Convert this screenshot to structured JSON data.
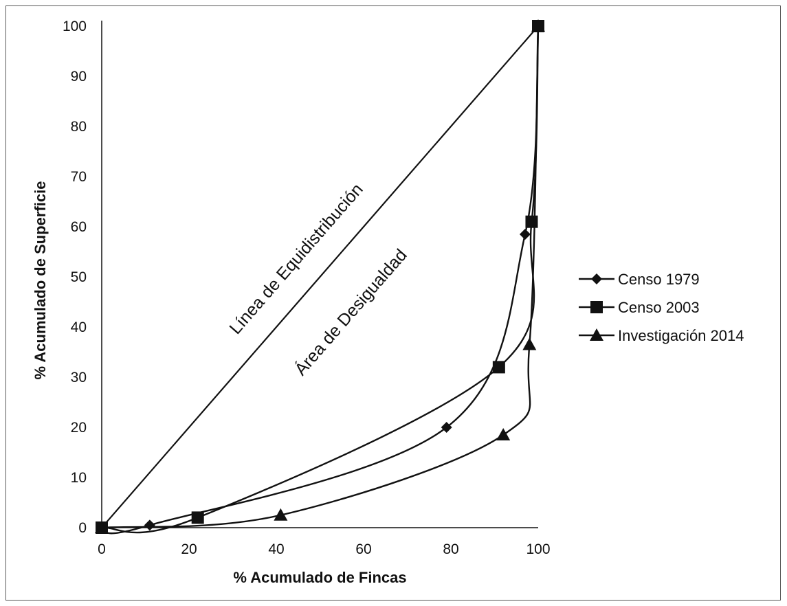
{
  "chart_data": {
    "type": "line",
    "title": "",
    "xlabel": "% Acumulado de Fincas",
    "ylabel": "% Acumulado de Superficie",
    "xlim": [
      0,
      100
    ],
    "ylim": [
      0,
      100
    ],
    "xticks": [
      0,
      20,
      40,
      60,
      80,
      100
    ],
    "yticks": [
      0,
      10,
      20,
      30,
      40,
      50,
      60,
      70,
      80,
      90,
      100
    ],
    "grid": false,
    "legend_position": "right",
    "annotations": [
      "Línea de Equidistribución",
      "Área de Desigualdad"
    ],
    "equality_line": {
      "x": [
        0,
        100
      ],
      "y": [
        0,
        100
      ]
    },
    "series": [
      {
        "name": "Censo 1979",
        "marker": "diamond",
        "x": [
          0,
          11,
          79,
          97,
          100
        ],
        "y": [
          0,
          0.5,
          20,
          58.5,
          100
        ]
      },
      {
        "name": "Censo 2003",
        "marker": "square",
        "x": [
          0,
          22,
          91,
          98.5,
          100
        ],
        "y": [
          0,
          2,
          32,
          61,
          100
        ]
      },
      {
        "name": "Investigación 2014",
        "marker": "triangle",
        "x": [
          0,
          41,
          92,
          98,
          100
        ],
        "y": [
          0,
          2.5,
          18.5,
          36.5,
          100
        ]
      }
    ]
  }
}
